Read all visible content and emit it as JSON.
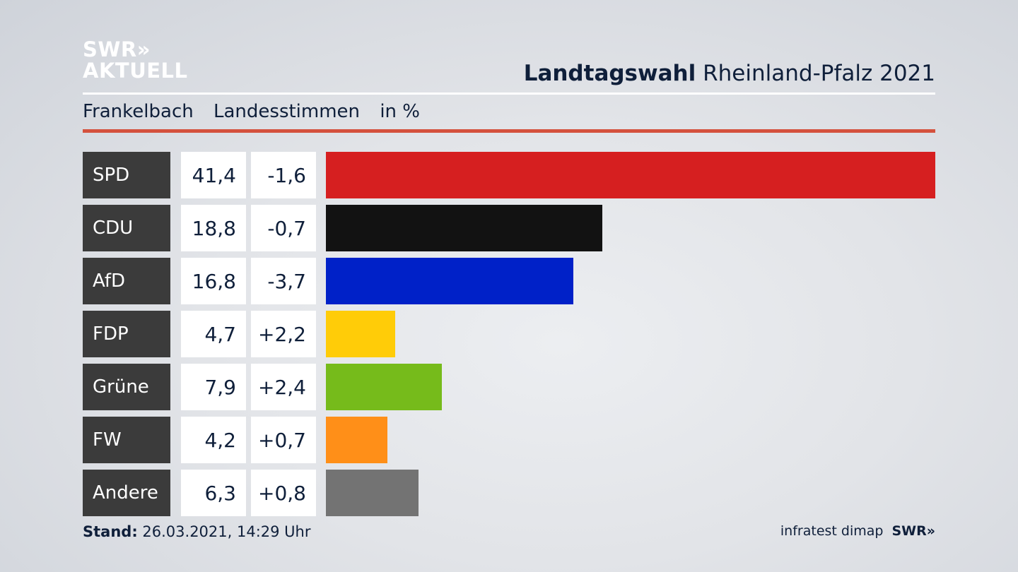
{
  "logo": {
    "line1": "SWR»",
    "line2": "AKTUELL"
  },
  "header": {
    "title_bold": "Landtagswahl",
    "title_rest": " Rheinland-Pfalz 2021"
  },
  "subheader": {
    "location": "Frankelbach",
    "vote_type": "Landesstimmen",
    "unit": "in %"
  },
  "chart_data": {
    "type": "bar",
    "orientation": "horizontal",
    "categories": [
      "SPD",
      "CDU",
      "AfD",
      "FDP",
      "Grüne",
      "FW",
      "Andere"
    ],
    "values": [
      41.4,
      18.8,
      16.8,
      4.7,
      7.9,
      4.2,
      6.3
    ],
    "value_labels": [
      "41,4",
      "18,8",
      "16,8",
      "4,7",
      "7,9",
      "4,2",
      "6,3"
    ],
    "changes": [
      "-1,6",
      "-0,7",
      "-3,7",
      "+2,2",
      "+2,4",
      "+0,7",
      "+0,8"
    ],
    "colors": [
      "#d61f20",
      "#121212",
      "#0021c8",
      "#ffcc08",
      "#76bb1b",
      "#ff8f18",
      "#737373"
    ],
    "xlim": [
      0,
      41.4
    ]
  },
  "footer": {
    "stand_label": "Stand:",
    "stand_value": " 26.03.2021, 14:29 Uhr",
    "source": "infratest dimap",
    "brand": "SWR»"
  }
}
